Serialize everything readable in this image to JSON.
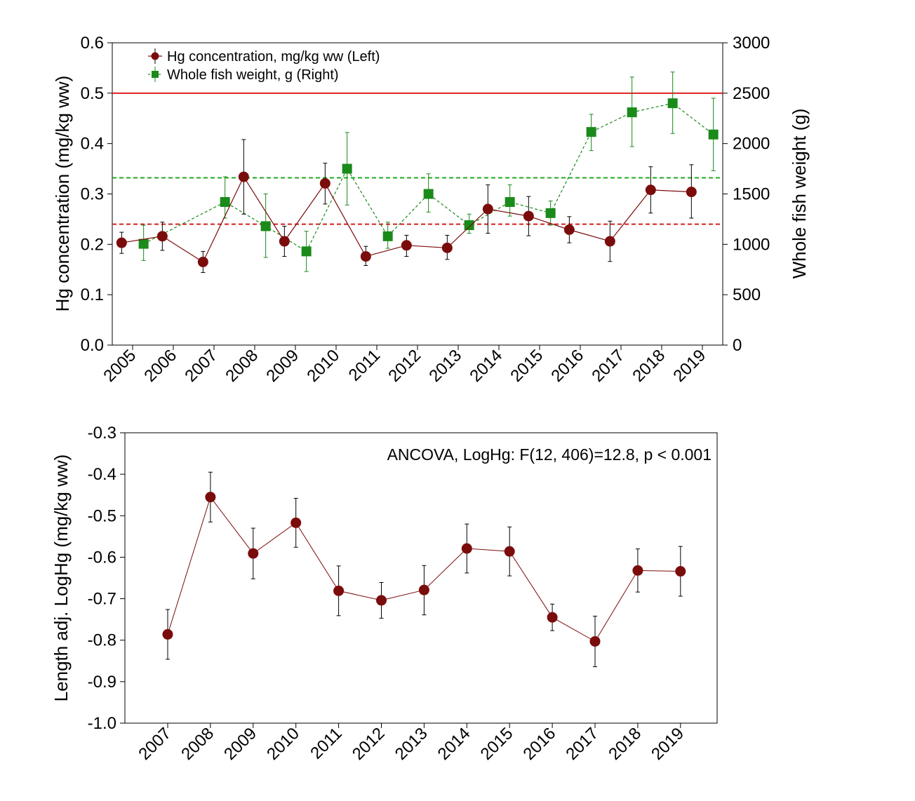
{
  "chart_data": [
    {
      "type": "line",
      "ylabel": "Hg concentration (mg/kg ww)",
      "y2label": "Whole fish weight (g)",
      "ylim": [
        0,
        0.6
      ],
      "yticks": [
        "0.0",
        "0.1",
        "0.2",
        "0.3",
        "0.4",
        "0.5",
        "0.6"
      ],
      "y2lim": [
        0,
        3000
      ],
      "y2ticks": [
        "0",
        "500",
        "1000",
        "1500",
        "2000",
        "2500",
        "3000"
      ],
      "categories": [
        "2005",
        "2006",
        "2007",
        "2008",
        "2009",
        "2010",
        "2011",
        "2012",
        "2013",
        "2014",
        "2015",
        "2016",
        "2017",
        "2018",
        "2019"
      ],
      "grid": false,
      "legend_position": "top-left",
      "series": [
        {
          "name": "Hg concentration, mg/kg ww (Left)",
          "axis": "left",
          "color": "#7b0c0c",
          "marker": "circle",
          "line": "solid",
          "values": [
            0.203,
            0.216,
            0.165,
            0.334,
            0.206,
            0.321,
            0.176,
            0.198,
            0.193,
            0.27,
            0.256,
            0.229,
            0.206,
            0.308,
            0.304
          ],
          "err_low": [
            0.182,
            0.188,
            0.144,
            0.26,
            0.176,
            0.28,
            0.158,
            0.176,
            0.17,
            0.222,
            0.217,
            0.203,
            0.166,
            0.262,
            0.252
          ],
          "err_high": [
            0.224,
            0.244,
            0.186,
            0.408,
            0.236,
            0.361,
            0.196,
            0.218,
            0.218,
            0.318,
            0.295,
            0.255,
            0.246,
            0.354,
            0.358
          ]
        },
        {
          "name": "Whole fish weight, g (Right)",
          "axis": "right",
          "color": "#1a8a1a",
          "marker": "square",
          "line": "dashed",
          "values": [
            1005,
            null,
            1420,
            1180,
            930,
            1750,
            1080,
            1500,
            1190,
            1420,
            1310,
            2115,
            2310,
            2400,
            2090
          ],
          "err_low": [
            840,
            null,
            1260,
            870,
            730,
            1390,
            960,
            1320,
            1110,
            1280,
            1190,
            1930,
            1970,
            2100,
            1730
          ],
          "err_high": [
            1190,
            null,
            1670,
            1500,
            1130,
            2110,
            1220,
            1700,
            1300,
            1590,
            1430,
            2290,
            2660,
            2710,
            2450
          ]
        }
      ],
      "reference_lines": [
        {
          "axis": "left",
          "value": 0.5,
          "color": "#e02020",
          "style": "solid"
        },
        {
          "axis": "left",
          "value": 0.24,
          "color": "#d42020",
          "style": "dashed"
        },
        {
          "axis": "left",
          "value": 0.332,
          "color": "#22aa22",
          "style": "dashed"
        }
      ]
    },
    {
      "type": "line",
      "ylabel": "Length adj. LogHg (mg/kg ww)",
      "ylim": [
        -1.0,
        -0.3
      ],
      "yticks": [
        "-1.0",
        "-0.9",
        "-0.8",
        "-0.7",
        "-0.6",
        "-0.5",
        "-0.4",
        "-0.3"
      ],
      "categories": [
        "2007",
        "2008",
        "2009",
        "2010",
        "2011",
        "2012",
        "2013",
        "2014",
        "2015",
        "2016",
        "2017",
        "2018",
        "2019"
      ],
      "grid": false,
      "annotation": "ANCOVA, LogHg: F(12, 406)=12.8, p < 0.001",
      "series": [
        {
          "color": "#7b0c0c",
          "marker": "circle",
          "line": "solid",
          "values": [
            -0.786,
            -0.455,
            -0.591,
            -0.517,
            -0.681,
            -0.704,
            -0.679,
            -0.579,
            -0.586,
            -0.745,
            -0.803,
            -0.632,
            -0.634
          ],
          "err_low": [
            -0.846,
            -0.515,
            -0.652,
            -0.576,
            -0.741,
            -0.747,
            -0.739,
            -0.638,
            -0.645,
            -0.777,
            -0.864,
            -0.684,
            -0.694
          ],
          "err_high": [
            -0.726,
            -0.395,
            -0.53,
            -0.458,
            -0.621,
            -0.661,
            -0.62,
            -0.52,
            -0.527,
            -0.713,
            -0.742,
            -0.58,
            -0.574
          ]
        }
      ]
    }
  ]
}
